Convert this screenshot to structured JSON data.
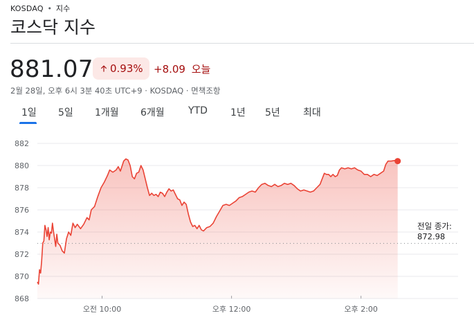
{
  "header": {
    "exchange": "KOSDAQ",
    "separator": "•",
    "section": "지수",
    "title": "코스닥 지수"
  },
  "quote": {
    "price": "881.07",
    "change_percent": "0.93%",
    "change_points": "+8.09",
    "change_period": "오늘",
    "meta": "2월 28일, 오후 6시 3분 40초 UTC+9 · KOSDAQ · 면책조항"
  },
  "tabs": [
    "1일",
    "5일",
    "1개월",
    "6개월",
    "YTD",
    "1년",
    "5년",
    "최대"
  ],
  "active_tab": 0,
  "colors": {
    "line": "#ea4335",
    "fill": "#fce8e6",
    "accent": "#1a73e8",
    "negative_text": "#a50e0e"
  },
  "chart_data": {
    "type": "area",
    "y_ticks": [
      868,
      870,
      872,
      874,
      876,
      878,
      880,
      882
    ],
    "ylim": [
      868,
      882
    ],
    "x_ticks": [
      {
        "t": 600,
        "label": "오전 10:00"
      },
      {
        "t": 720,
        "label": "오후 12:00"
      },
      {
        "t": 840,
        "label": "오후 2:00"
      }
    ],
    "xlim": [
      540,
      930
    ],
    "previous_close": 872.98,
    "previous_close_label": "전일 종가:",
    "previous_close_text": "872.98",
    "grid": true,
    "last_point_marker": true,
    "points": [
      [
        540,
        869.5
      ],
      [
        541,
        869.3
      ],
      [
        542,
        870.6
      ],
      [
        543,
        870.3
      ],
      [
        544,
        871.4
      ],
      [
        545,
        873.0
      ],
      [
        546,
        873.2
      ],
      [
        547,
        874.6
      ],
      [
        548,
        874.2
      ],
      [
        549,
        873.6
      ],
      [
        550,
        874.4
      ],
      [
        551,
        873.3
      ],
      [
        552,
        874.0
      ],
      [
        553,
        873.9
      ],
      [
        554,
        874.8
      ],
      [
        555,
        874.0
      ],
      [
        556,
        873.4
      ],
      [
        557,
        872.7
      ],
      [
        558,
        873.8
      ],
      [
        559,
        873.0
      ],
      [
        561,
        872.8
      ],
      [
        563,
        872.3
      ],
      [
        565,
        872.1
      ],
      [
        567,
        873.4
      ],
      [
        569,
        874.0
      ],
      [
        571,
        873.7
      ],
      [
        573,
        874.8
      ],
      [
        575,
        874.4
      ],
      [
        577,
        874.7
      ],
      [
        580,
        874.3
      ],
      [
        583,
        874.7
      ],
      [
        586,
        875.3
      ],
      [
        588,
        875.1
      ],
      [
        590,
        876.0
      ],
      [
        593,
        876.3
      ],
      [
        596,
        877.2
      ],
      [
        599,
        878.0
      ],
      [
        602,
        878.5
      ],
      [
        605,
        879.1
      ],
      [
        607,
        879.6
      ],
      [
        610,
        879.4
      ],
      [
        613,
        879.6
      ],
      [
        615,
        879.9
      ],
      [
        617,
        879.5
      ],
      [
        620,
        880.4
      ],
      [
        622,
        880.6
      ],
      [
        624,
        880.5
      ],
      [
        626,
        880.0
      ],
      [
        628,
        879.0
      ],
      [
        630,
        878.8
      ],
      [
        632,
        879.3
      ],
      [
        634,
        879.4
      ],
      [
        636,
        880.0
      ],
      [
        638,
        879.6
      ],
      [
        640,
        878.8
      ],
      [
        642,
        878.0
      ],
      [
        644,
        877.3
      ],
      [
        646,
        877.5
      ],
      [
        648,
        877.3
      ],
      [
        650,
        877.4
      ],
      [
        652,
        877.2
      ],
      [
        654,
        877.6
      ],
      [
        656,
        877.5
      ],
      [
        658,
        877.2
      ],
      [
        660,
        877.6
      ],
      [
        662,
        877.9
      ],
      [
        664,
        877.7
      ],
      [
        666,
        877.8
      ],
      [
        668,
        877.4
      ],
      [
        670,
        877.0
      ],
      [
        672,
        876.9
      ],
      [
        674,
        876.4
      ],
      [
        676,
        876.7
      ],
      [
        678,
        876.5
      ],
      [
        680,
        875.6
      ],
      [
        682,
        874.9
      ],
      [
        684,
        874.5
      ],
      [
        686,
        874.6
      ],
      [
        688,
        874.3
      ],
      [
        690,
        874.6
      ],
      [
        692,
        874.2
      ],
      [
        694,
        874.1
      ],
      [
        697,
        874.4
      ],
      [
        700,
        874.5
      ],
      [
        703,
        874.8
      ],
      [
        706,
        875.4
      ],
      [
        709,
        875.9
      ],
      [
        712,
        876.4
      ],
      [
        715,
        876.5
      ],
      [
        718,
        876.4
      ],
      [
        721,
        876.6
      ],
      [
        724,
        876.8
      ],
      [
        727,
        877.1
      ],
      [
        730,
        877.2
      ],
      [
        733,
        877.4
      ],
      [
        736,
        877.6
      ],
      [
        739,
        877.7
      ],
      [
        742,
        877.6
      ],
      [
        745,
        878.0
      ],
      [
        748,
        878.3
      ],
      [
        751,
        878.4
      ],
      [
        754,
        878.2
      ],
      [
        757,
        878.1
      ],
      [
        760,
        878.3
      ],
      [
        763,
        878.1
      ],
      [
        766,
        878.2
      ],
      [
        769,
        878.4
      ],
      [
        772,
        878.3
      ],
      [
        775,
        878.4
      ],
      [
        778,
        878.2
      ],
      [
        781,
        877.9
      ],
      [
        784,
        877.7
      ],
      [
        787,
        877.8
      ],
      [
        790,
        877.7
      ],
      [
        793,
        877.6
      ],
      [
        796,
        877.7
      ],
      [
        799,
        878.0
      ],
      [
        802,
        878.3
      ],
      [
        804,
        878.8
      ],
      [
        806,
        879.3
      ],
      [
        808,
        879.2
      ],
      [
        810,
        879.2
      ],
      [
        812,
        879.0
      ],
      [
        814,
        879.2
      ],
      [
        816,
        879.0
      ],
      [
        818,
        879.1
      ],
      [
        820,
        879.6
      ],
      [
        822,
        879.8
      ],
      [
        825,
        879.7
      ],
      [
        828,
        879.8
      ],
      [
        831,
        879.7
      ],
      [
        834,
        879.8
      ],
      [
        837,
        879.6
      ],
      [
        840,
        879.5
      ],
      [
        843,
        879.2
      ],
      [
        846,
        879.2
      ],
      [
        849,
        879.0
      ],
      [
        852,
        879.2
      ],
      [
        855,
        879.1
      ],
      [
        858,
        879.3
      ],
      [
        861,
        879.5
      ],
      [
        863,
        880.1
      ],
      [
        865,
        880.4
      ],
      [
        868,
        880.4
      ],
      [
        871,
        880.45
      ],
      [
        874,
        880.4
      ]
    ]
  }
}
